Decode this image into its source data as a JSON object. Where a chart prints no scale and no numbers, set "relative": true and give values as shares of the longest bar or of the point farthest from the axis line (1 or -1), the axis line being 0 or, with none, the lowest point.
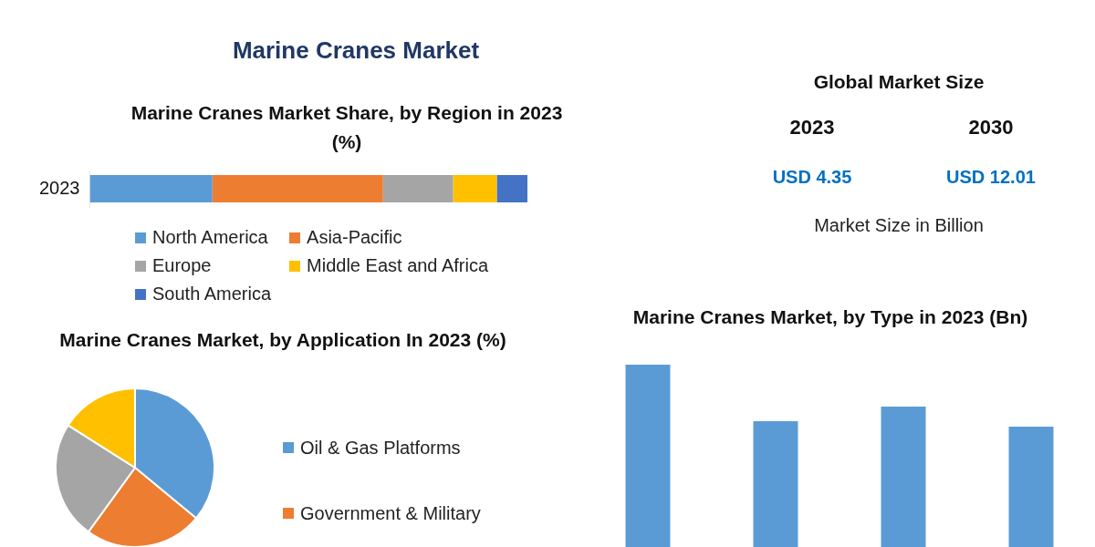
{
  "chart_data": [
    {
      "type": "bar",
      "title": "Marine Cranes Market",
      "subtitle": "Marine Cranes Market Share, by Region in 2023 (%)",
      "orientation": "horizontal",
      "stacked": true,
      "relative": true,
      "categories": [
        "2023"
      ],
      "legend": "bottom",
      "series": [
        {
          "name": "North America",
          "color": "#5b9bd5",
          "values": [
            0.28
          ]
        },
        {
          "name": "Asia-Pacific",
          "color": "#ed7d31",
          "values": [
            0.39
          ]
        },
        {
          "name": "Europe",
          "color": "#a5a5a5",
          "values": [
            0.16
          ]
        },
        {
          "name": "Middle East and Africa",
          "color": "#ffc000",
          "values": [
            0.1
          ]
        },
        {
          "name": "South America",
          "color": "#4472c4",
          "values": [
            0.07
          ]
        }
      ]
    },
    {
      "type": "other",
      "title": "Global Market Size",
      "categories": [
        "2023",
        "2030"
      ],
      "value_labels": [
        "USD 4.35",
        "USD 12.01"
      ],
      "color": "#0070c0",
      "annotations": [
        "Market Size in Billion"
      ]
    },
    {
      "type": "pie",
      "title": "Marine Cranes Market, by Application In 2023 (%)",
      "categories": [
        "Oil & Gas Platforms",
        "Government & Military",
        null,
        null
      ],
      "values": [
        36,
        24,
        24,
        16
      ],
      "colors": [
        "#5b9bd5",
        "#ed7d31",
        "#a5a5a5",
        "#ffc000"
      ],
      "legend": "right"
    },
    {
      "type": "bar",
      "title": "Marine Cranes Market, by Type in 2023 (Bn)",
      "relative": true,
      "categories": [
        null,
        null,
        null,
        null
      ],
      "values": [
        1,
        0.69,
        0.77,
        0.66
      ],
      "color": "#5b9bd5"
    }
  ]
}
